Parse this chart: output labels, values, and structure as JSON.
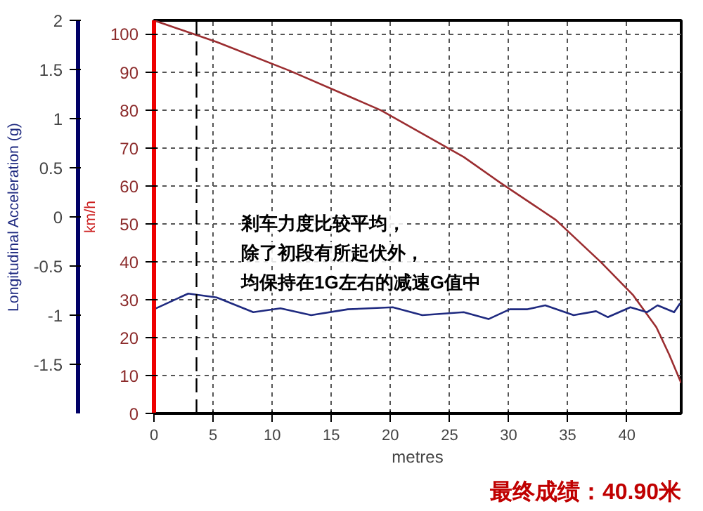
{
  "chart_data": {
    "type": "line",
    "xlabel": "metres",
    "ylabel": "Longitudinal Acceleration (g)",
    "y2label": "km/h",
    "xlim": [
      0,
      44.6
    ],
    "xticks": [
      0,
      5,
      10,
      15,
      20,
      25,
      30,
      35,
      40
    ],
    "ylim": [
      -2,
      2
    ],
    "yticks": [
      {
        "value": 2,
        "label": "2"
      },
      {
        "value": 1.5,
        "label": "1.5"
      },
      {
        "value": 1,
        "label": "1"
      },
      {
        "value": 0.5,
        "label": "0.5"
      },
      {
        "value": 0,
        "label": "0"
      },
      {
        "value": -0.5,
        "label": "-0.5"
      },
      {
        "value": -1,
        "label": "-1"
      },
      {
        "value": -1.5,
        "label": "-1.5"
      }
    ],
    "y2lim": [
      0,
      103.6
    ],
    "y2ticks": [
      0,
      10,
      20,
      30,
      40,
      50,
      60,
      70,
      80,
      90,
      100
    ],
    "grid": true,
    "series": [
      {
        "color": "#9b2d30",
        "axis": "y2",
        "x": [
          0,
          5.3,
          11.5,
          19.2,
          26.2,
          29.3,
          34.0,
          37.8,
          40.5,
          42.5,
          43.6,
          44.6
        ],
        "values": [
          103.6,
          97.9,
          90.3,
          79.9,
          67.6,
          60.8,
          51.0,
          39.9,
          31.3,
          22.7,
          15.4,
          8.0
        ]
      },
      {
        "color": "#1f2a80",
        "axis": "y",
        "x": [
          0,
          2.9,
          5.3,
          8.4,
          10.7,
          13.3,
          16.4,
          20.2,
          22.7,
          26.2,
          28.3,
          30.1,
          31.6,
          33.1,
          35.5,
          37.4,
          38.4,
          40.3,
          41.7,
          42.6,
          44.0,
          44.5
        ],
        "values": [
          -0.94,
          -0.78,
          -0.82,
          -0.97,
          -0.93,
          -1.0,
          -0.94,
          -0.92,
          -1.0,
          -0.97,
          -1.04,
          -0.94,
          -0.94,
          -0.9,
          -1.0,
          -0.96,
          -1.02,
          -0.92,
          -0.97,
          -0.9,
          -0.97,
          -0.88
        ]
      }
    ],
    "ref_lines": [
      {
        "axis": "x",
        "value": 3.6,
        "color": "#000000",
        "line_style": "dashed"
      }
    ],
    "annotations": [
      "剎车力度比较平均，",
      "除了初段有所起伏外，",
      "均保持在1G左右的减速G值中",
      "最终成绩：40.90米"
    ]
  }
}
